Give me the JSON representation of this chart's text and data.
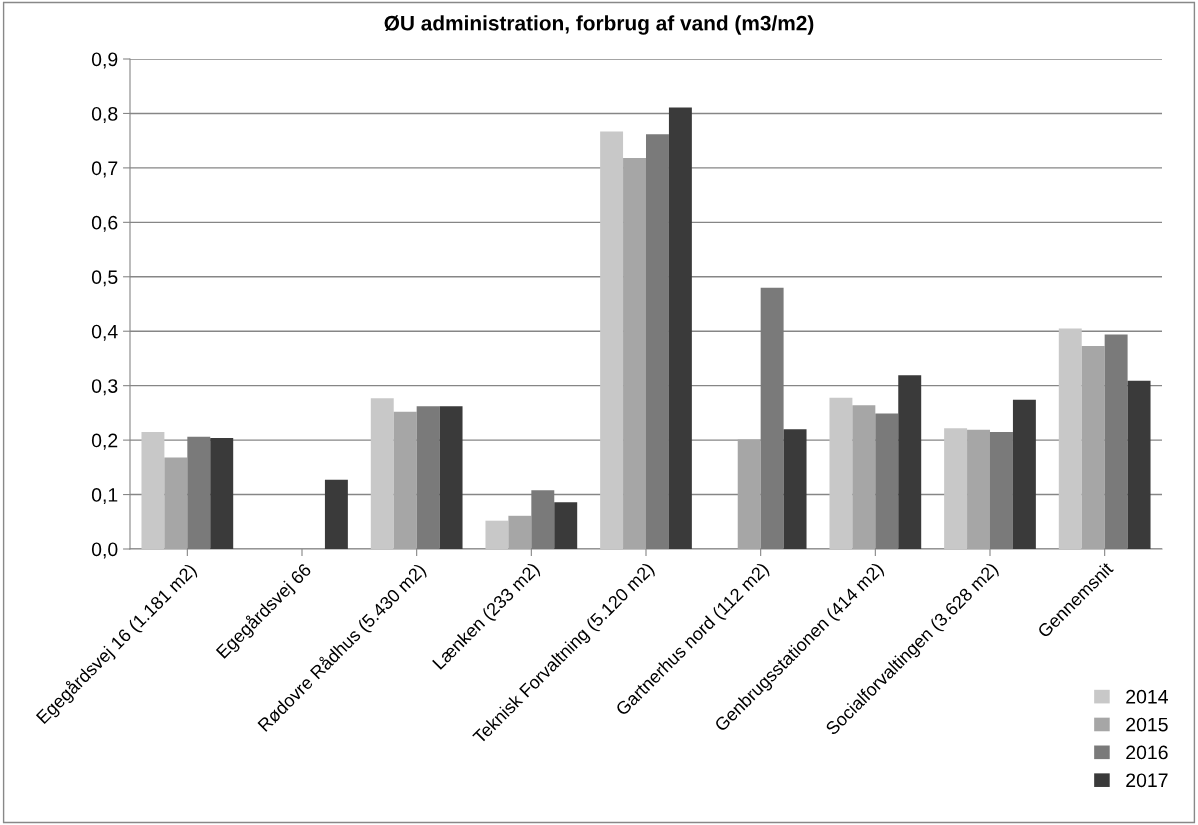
{
  "chart_data": {
    "type": "bar",
    "title": "ØU administration, forbrug af vand (m3/m2)",
    "categories": [
      "Egegårdsvej 16 (1.181 m2)",
      "Egegårdsvej 66",
      "Rødovre Rådhus (5.430 m2)",
      "Lænken (233 m2)",
      "Teknisk Forvaltning (5.120 m2)",
      "Gartnerhus nord (112 m2)",
      "Genbrugsstationen (414 m2)",
      "Socialforvaltingen (3.628 m2)",
      "Gennemsnit"
    ],
    "series": [
      {
        "name": "2014",
        "color": "#c8c8c8",
        "values": [
          0.215,
          null,
          0.277,
          0.052,
          0.767,
          null,
          0.278,
          0.222,
          0.405
        ]
      },
      {
        "name": "2015",
        "color": "#a6a6a6",
        "values": [
          0.168,
          null,
          0.252,
          0.061,
          0.718,
          0.201,
          0.264,
          0.219,
          0.373
        ]
      },
      {
        "name": "2016",
        "color": "#7a7a7a",
        "values": [
          0.206,
          null,
          0.262,
          0.108,
          0.762,
          0.48,
          0.249,
          0.215,
          0.394
        ]
      },
      {
        "name": "2017",
        "color": "#3a3a3a",
        "values": [
          0.204,
          0.127,
          0.262,
          0.086,
          0.811,
          0.22,
          0.319,
          0.274,
          0.309
        ]
      }
    ],
    "ylim": [
      0,
      0.9
    ],
    "yticks": [
      {
        "value": 0,
        "label": "0,0"
      },
      {
        "value": 0.1,
        "label": "0,1"
      },
      {
        "value": 0.2,
        "label": "0,2"
      },
      {
        "value": 0.3,
        "label": "0,3"
      },
      {
        "value": 0.4,
        "label": "0,4"
      },
      {
        "value": 0.5,
        "label": "0,5"
      },
      {
        "value": 0.6,
        "label": "0,6"
      },
      {
        "value": 0.7,
        "label": "0,7"
      },
      {
        "value": 0.8,
        "label": "0,8"
      },
      {
        "value": 0.9,
        "label": "0,9"
      }
    ],
    "grid": "y",
    "legend": "bottom right"
  }
}
